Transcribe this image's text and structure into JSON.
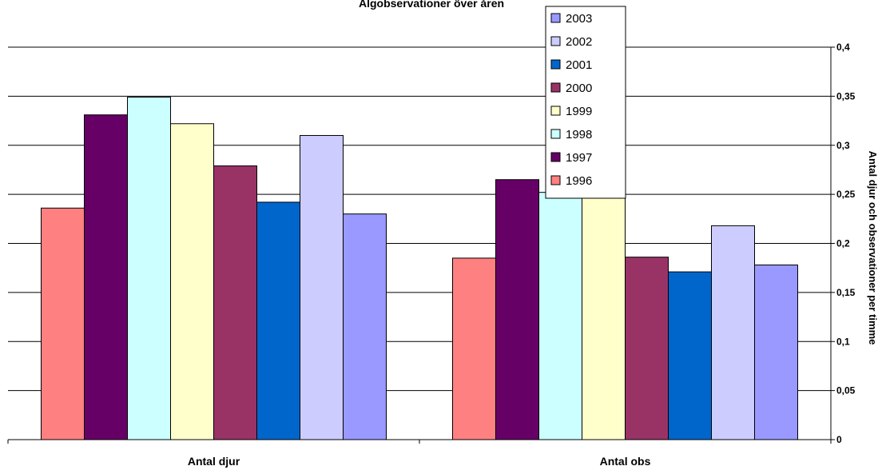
{
  "chart_data": {
    "type": "bar",
    "title": "Älgobservationer över åren",
    "ylabel": "Antal djur och observationer per timme",
    "xlabel": "",
    "categories": [
      "Antal djur",
      "Antal obs"
    ],
    "ylim": [
      0,
      0.4
    ],
    "yticks": [
      "0",
      "0,05",
      "0,1",
      "0,15",
      "0,2",
      "0,25",
      "0,3",
      "0,35",
      "0,4"
    ],
    "grid": true,
    "y_axis_side": "right",
    "legend_position": "top-center",
    "series": [
      {
        "name": "1996",
        "color": "#FF8080",
        "values": [
          0.236,
          0.185
        ]
      },
      {
        "name": "1997",
        "color": "#660066",
        "values": [
          0.331,
          0.265
        ]
      },
      {
        "name": "1998",
        "color": "#CCFFFF",
        "values": [
          0.349,
          0.252
        ]
      },
      {
        "name": "1999",
        "color": "#FFFFCC",
        "values": [
          0.322,
          0.247
        ]
      },
      {
        "name": "2000",
        "color": "#993366",
        "values": [
          0.279,
          0.186
        ]
      },
      {
        "name": "2001",
        "color": "#0066CC",
        "values": [
          0.242,
          0.171
        ]
      },
      {
        "name": "2002",
        "color": "#CCCCFF",
        "values": [
          0.31,
          0.218
        ]
      },
      {
        "name": "2003",
        "color": "#9999FF",
        "values": [
          0.23,
          0.178
        ]
      }
    ]
  }
}
